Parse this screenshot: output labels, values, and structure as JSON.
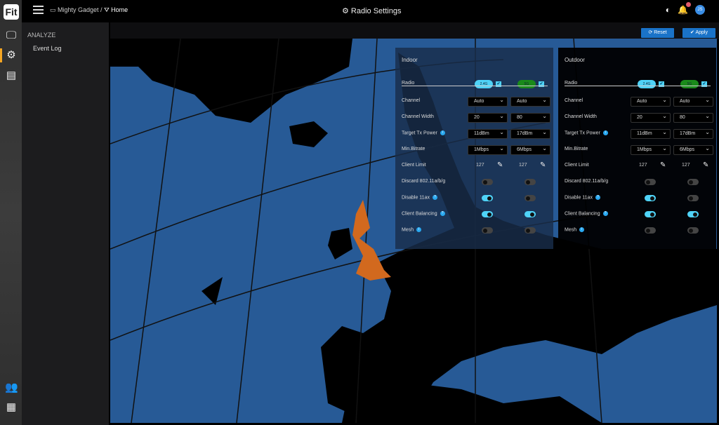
{
  "app": {
    "logo": "Fit",
    "title": "Radio Settings"
  },
  "breadcrumb": {
    "org": "Mighty Gadget /",
    "site": "Home"
  },
  "user": {
    "initials": "JS"
  },
  "sidebar": {
    "section": "ANALYZE",
    "items": [
      {
        "label": "Event Log"
      }
    ]
  },
  "toolbar": {
    "reset": "⟳ Reset",
    "apply": "✔ Apply"
  },
  "colors": {
    "accent": "#1a73c8",
    "band24": "#4fd3f7",
    "band5": "#1a8a1a",
    "ocean": "#275a96",
    "highlight": "#d2691e"
  },
  "panels": [
    {
      "title": "Indoor",
      "bands": [
        "2.4G",
        "5G"
      ],
      "channel": [
        "Auto",
        "Auto"
      ],
      "width": [
        "20",
        "80"
      ],
      "power": [
        "11dBm",
        "17dBm"
      ],
      "bitrate": [
        "1Mbps",
        "6Mbps"
      ],
      "client_limit": [
        "127",
        "127"
      ],
      "discard": [
        false,
        false
      ],
      "disable11ax": [
        true,
        false
      ],
      "balancing": [
        true,
        true
      ],
      "mesh": [
        false,
        false
      ]
    },
    {
      "title": "Outdoor",
      "bands": [
        "2.4G",
        "5G"
      ],
      "channel": [
        "Auto",
        "Auto"
      ],
      "width": [
        "20",
        "80"
      ],
      "power": [
        "11dBm",
        "17dBm"
      ],
      "bitrate": [
        "1Mbps",
        "6Mbps"
      ],
      "client_limit": [
        "127",
        "127"
      ],
      "discard": [
        false,
        false
      ],
      "disable11ax": [
        true,
        false
      ],
      "balancing": [
        true,
        true
      ],
      "mesh": [
        false,
        false
      ]
    }
  ],
  "labels": {
    "radio": "Radio",
    "channel": "Channel",
    "width": "Channel Width",
    "power": "Target Tx Power",
    "bitrate": "Min.Bitrate",
    "client_limit": "Client Limit",
    "discard": "Discard 802.11a/b/g",
    "disable11ax": "Disable 11ax",
    "balancing": "Client Balancing",
    "mesh": "Mesh"
  }
}
